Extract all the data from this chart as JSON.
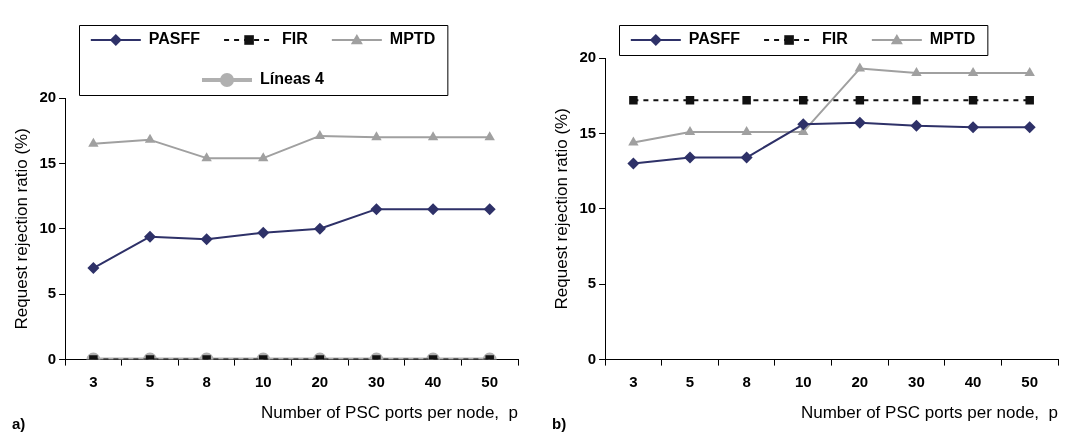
{
  "chart_data": [
    {
      "type": "line",
      "xlabel": "Number of PSC ports per node,  p",
      "ylabel": "Request rejection ratio (%)",
      "categories": [
        "3",
        "5",
        "8",
        "10",
        "20",
        "30",
        "40",
        "50"
      ],
      "ylim": [
        0,
        20
      ],
      "yticks": [
        0,
        5,
        10,
        15,
        20
      ],
      "grid": false,
      "legend": "top",
      "annotations": [
        "a)"
      ],
      "series": [
        {
          "name": "PASFF",
          "color": "#2e3168",
          "marker": "diamond",
          "line_style": "solid",
          "values": [
            7.0,
            9.4,
            9.2,
            9.7,
            10.0,
            11.5,
            11.5,
            11.5
          ]
        },
        {
          "name": "FIR",
          "color": "#111111",
          "marker": "square",
          "line_style": "dashed",
          "values": [
            0,
            0,
            0,
            0,
            0,
            0,
            0,
            0
          ]
        },
        {
          "name": "MPTD",
          "color": "#a0a0a0",
          "marker": "triangle",
          "line_style": "solid",
          "values": [
            16.5,
            16.8,
            15.4,
            15.4,
            17.1,
            17.0,
            17.0,
            17.0
          ]
        },
        {
          "name": "Líneas 4",
          "color": "#b0b0b0",
          "marker": "circle",
          "line_style": "solid",
          "values": [
            0,
            0,
            0,
            0,
            0,
            0,
            0,
            0
          ]
        }
      ]
    },
    {
      "type": "line",
      "xlabel": "Number of PSC ports per node,  p",
      "ylabel": "Request rejection ratio (%)",
      "categories": [
        "3",
        "5",
        "8",
        "10",
        "20",
        "30",
        "40",
        "50"
      ],
      "ylim": [
        0,
        20
      ],
      "yticks": [
        0,
        5,
        10,
        15,
        20
      ],
      "grid": false,
      "legend": "top",
      "annotations": [
        "b)"
      ],
      "series": [
        {
          "name": "PASFF",
          "color": "#2e3168",
          "marker": "diamond",
          "line_style": "solid",
          "values": [
            13.0,
            13.4,
            13.4,
            15.6,
            15.7,
            15.5,
            15.4,
            15.4
          ]
        },
        {
          "name": "FIR",
          "color": "#111111",
          "marker": "square",
          "line_style": "dashed",
          "values": [
            17.2,
            17.2,
            17.2,
            17.2,
            17.2,
            17.2,
            17.2,
            17.2
          ]
        },
        {
          "name": "MPTD",
          "color": "#a0a0a0",
          "marker": "triangle",
          "line_style": "solid",
          "values": [
            14.4,
            15.1,
            15.1,
            15.1,
            19.3,
            19.0,
            19.0,
            19.0
          ]
        }
      ]
    }
  ]
}
